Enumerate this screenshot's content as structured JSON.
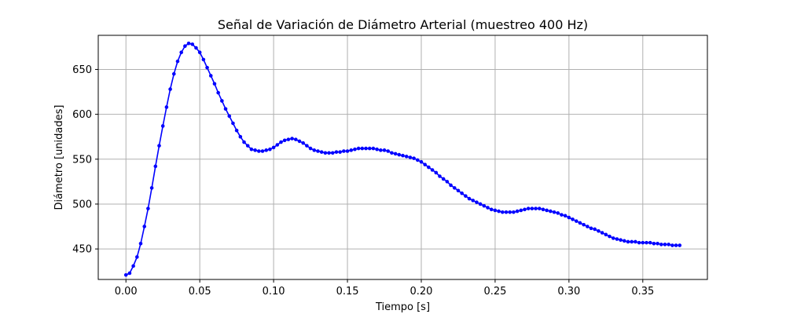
{
  "chart_data": {
    "type": "line",
    "title": "Señal de Variación de Diámetro Arterial (muestreo 400 Hz)",
    "xlabel": "Tiempo [s]",
    "ylabel": "Diámetro [unidades]",
    "xlim": [
      -0.01875,
      0.39375
    ],
    "ylim": [
      416,
      688
    ],
    "xticks": [
      0.0,
      0.05,
      0.1,
      0.15,
      0.2,
      0.25,
      0.3,
      0.35
    ],
    "xtick_labels": [
      "0.00",
      "0.05",
      "0.10",
      "0.15",
      "0.20",
      "0.25",
      "0.30",
      "0.35"
    ],
    "yticks": [
      450,
      500,
      550,
      600,
      650
    ],
    "ytick_labels": [
      "450",
      "500",
      "550",
      "600",
      "650"
    ],
    "grid": true,
    "line_color": "#0000ff",
    "marker": "circle",
    "series": [
      {
        "x": [
          0.0,
          0.0025,
          0.005,
          0.0075,
          0.01,
          0.0125,
          0.015,
          0.0175,
          0.02,
          0.0225,
          0.025,
          0.0275,
          0.03,
          0.0325,
          0.035,
          0.0375,
          0.04,
          0.0425,
          0.045,
          0.0475,
          0.05,
          0.0525,
          0.055,
          0.0575,
          0.06,
          0.0625,
          0.065,
          0.0675,
          0.07,
          0.0725,
          0.075,
          0.0775,
          0.08,
          0.0825,
          0.085,
          0.0875,
          0.09,
          0.0925,
          0.095,
          0.0975,
          0.1,
          0.1025,
          0.105,
          0.1075,
          0.11,
          0.1125,
          0.115,
          0.1175,
          0.12,
          0.1225,
          0.125,
          0.1275,
          0.13,
          0.1325,
          0.135,
          0.1375,
          0.14,
          0.1425,
          0.145,
          0.1475,
          0.15,
          0.1525,
          0.155,
          0.1575,
          0.16,
          0.1625,
          0.165,
          0.1675,
          0.17,
          0.1725,
          0.175,
          0.1775,
          0.18,
          0.1825,
          0.185,
          0.1875,
          0.19,
          0.1925,
          0.195,
          0.1975,
          0.2,
          0.2025,
          0.205,
          0.2075,
          0.21,
          0.2125,
          0.215,
          0.2175,
          0.22,
          0.2225,
          0.225,
          0.2275,
          0.23,
          0.2325,
          0.235,
          0.2375,
          0.24,
          0.2425,
          0.245,
          0.2475,
          0.25,
          0.2525,
          0.255,
          0.2575,
          0.26,
          0.2625,
          0.265,
          0.2675,
          0.27,
          0.2725,
          0.275,
          0.2775,
          0.28,
          0.2825,
          0.285,
          0.2875,
          0.29,
          0.2925,
          0.295,
          0.2975,
          0.3,
          0.3025,
          0.305,
          0.3075,
          0.31,
          0.3125,
          0.315,
          0.3175,
          0.32,
          0.3225,
          0.325,
          0.3275,
          0.33,
          0.3325,
          0.335,
          0.3375,
          0.34,
          0.3425,
          0.345,
          0.3475,
          0.35,
          0.3525,
          0.355,
          0.3575,
          0.36,
          0.3625,
          0.365,
          0.3675,
          0.37,
          0.3725,
          0.375
        ],
        "y": [
          421,
          423,
          431,
          441,
          456,
          475,
          495,
          518,
          542,
          565,
          587,
          608,
          628,
          645,
          659,
          669,
          676,
          679,
          678,
          674,
          669,
          661,
          652,
          643,
          634,
          624,
          615,
          606,
          598,
          590,
          582,
          575,
          569,
          565,
          561,
          560,
          559,
          559,
          560,
          561,
          563,
          566,
          569,
          571,
          572,
          573,
          572,
          570,
          568,
          565,
          562,
          560,
          559,
          558,
          557,
          557,
          557,
          558,
          558,
          559,
          559,
          560,
          561,
          562,
          562,
          562,
          562,
          562,
          561,
          560,
          560,
          559,
          557,
          556,
          555,
          554,
          553,
          552,
          551,
          549,
          547,
          544,
          541,
          538,
          535,
          531,
          528,
          525,
          521,
          518,
          515,
          512,
          509,
          506,
          504,
          502,
          500,
          498,
          496,
          494,
          493,
          492,
          491,
          491,
          491,
          491,
          492,
          493,
          494,
          495,
          495,
          495,
          495,
          494,
          493,
          492,
          491,
          490,
          488,
          487,
          485,
          483,
          481,
          479,
          477,
          475,
          473,
          472,
          470,
          468,
          466,
          464,
          462,
          461,
          460,
          459,
          458,
          458,
          458,
          457,
          457,
          457,
          457,
          456,
          456,
          455,
          455,
          455,
          454,
          454,
          454
        ]
      }
    ]
  }
}
